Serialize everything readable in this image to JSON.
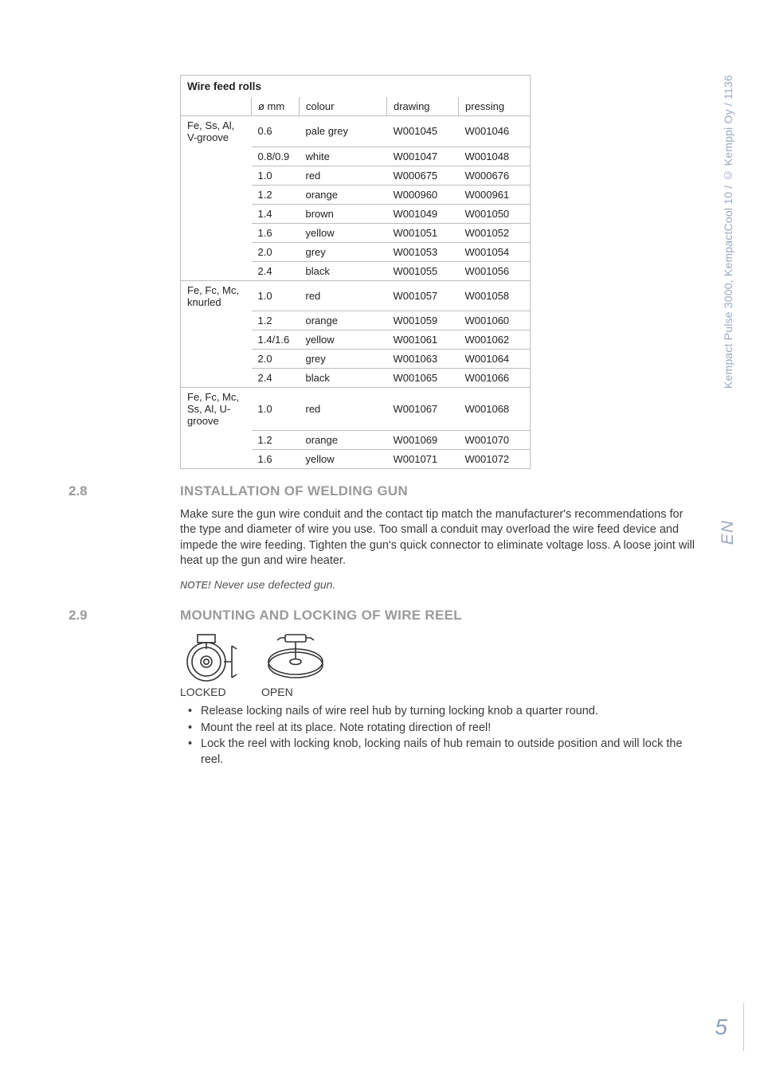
{
  "meta": {
    "side_text": "Kempact Pulse 3000, KempactCool 10 / © Kemppi Oy / 1136",
    "lang": "EN",
    "page_number": "5"
  },
  "table": {
    "caption": "Wire feed rolls",
    "headers": [
      "",
      "ø mm",
      "colour",
      "drawing",
      "pressing"
    ],
    "groups": [
      {
        "label": "Fe, Ss, Al, V-groove",
        "rows": [
          [
            "0.6",
            "pale grey",
            "W001045",
            "W001046"
          ],
          [
            "0.8/0.9",
            "white",
            "W001047",
            "W001048"
          ],
          [
            "1.0",
            "red",
            "W000675",
            "W000676"
          ],
          [
            "1.2",
            "orange",
            "W000960",
            "W000961"
          ],
          [
            "1.4",
            "brown",
            "W001049",
            "W001050"
          ],
          [
            "1.6",
            "yellow",
            "W001051",
            "W001052"
          ],
          [
            "2.0",
            "grey",
            "W001053",
            "W001054"
          ],
          [
            "2.4",
            "black",
            "W001055",
            "W001056"
          ]
        ]
      },
      {
        "label": "Fe, Fc, Mc, knurled",
        "rows": [
          [
            "1.0",
            "red",
            "W001057",
            "W001058"
          ],
          [
            "1.2",
            "orange",
            "W001059",
            "W001060"
          ],
          [
            "1.4/1.6",
            "yellow",
            "W001061",
            "W001062"
          ],
          [
            "2.0",
            "grey",
            "W001063",
            "W001064"
          ],
          [
            "2.4",
            "black",
            "W001065",
            "W001066"
          ]
        ]
      },
      {
        "label": "Fe, Fc, Mc, Ss, Al, U-groove",
        "rows": [
          [
            "1.0",
            "red",
            "W001067",
            "W001068"
          ],
          [
            "1.2",
            "orange",
            "W001069",
            "W001070"
          ],
          [
            "1.6",
            "yellow",
            "W001071",
            "W001072"
          ]
        ]
      }
    ]
  },
  "sections": {
    "s28": {
      "num": "2.8",
      "title": "INSTALLATION OF WELDING GUN",
      "para": "Make sure the gun wire conduit and the contact tip match the manufacturer's recommendations for the type and diameter of wire you use. Too small a conduit may overload the wire feed device and impede the wire feeding. Tighten the gun's quick connector to eliminate voltage loss. A loose joint will heat up the gun and wire heater.",
      "note_label": "NOTE!",
      "note_text": " Never use defected gun."
    },
    "s29": {
      "num": "2.9",
      "title": "MOUNTING AND LOCKING OF WIRE REEL",
      "fig_locked": "LOCKED",
      "fig_open": "OPEN",
      "bullets": [
        "Release locking nails of wire reel hub by turning locking knob a quarter round.",
        "Mount the reel at its place. Note rotating direction of reel!",
        "Lock the reel with locking knob, locking nails of hub remain to outside position and will lock the reel."
      ]
    }
  }
}
